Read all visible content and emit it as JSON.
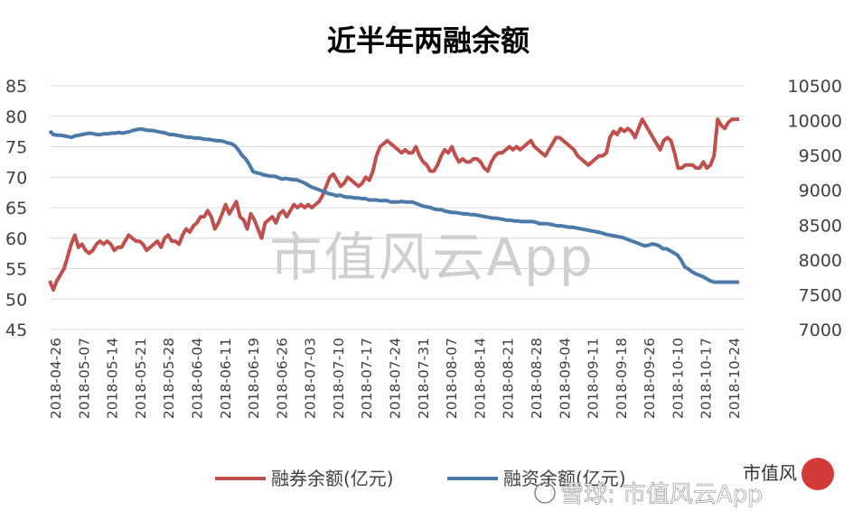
{
  "chart_data": {
    "type": "line",
    "title": "近半年两融余额",
    "grid": "horizontal",
    "legend_position": "bottom",
    "ylim_left": [
      45,
      85
    ],
    "yticks_left": [
      "45",
      "50",
      "55",
      "60",
      "65",
      "70",
      "75",
      "80",
      "85"
    ],
    "ylim_right": [
      7000,
      10500
    ],
    "yticks_right": [
      "7000",
      "7500",
      "8000",
      "8500",
      "9000",
      "9500",
      "10000",
      "10500"
    ],
    "xtick_labels": [
      "2018-04-26",
      "2018-05-07",
      "2018-05-14",
      "2018-05-21",
      "2018-05-28",
      "2018-06-04",
      "2018-06-11",
      "2018-06-19",
      "2018-06-26",
      "2018-07-03",
      "2018-07-10",
      "2018-07-17",
      "2018-07-24",
      "2018-07-31",
      "2018-08-07",
      "2018-08-14",
      "2018-08-21",
      "2018-08-28",
      "2018-09-04",
      "2018-09-11",
      "2018-09-18",
      "2018-09-26",
      "2018-10-10",
      "2018-10-17",
      "2018-10-24"
    ],
    "series": [
      {
        "name": "融券余额(亿元)",
        "axis": "left",
        "color": "#c0504d",
        "values": [
          53,
          51.5,
          53,
          54,
          55,
          57,
          59,
          60.5,
          58.5,
          59,
          58,
          57.5,
          58,
          59,
          59.5,
          59,
          59.5,
          59,
          58,
          58.5,
          58.5,
          59.5,
          60.5,
          60,
          59.5,
          59.5,
          59,
          58,
          58.5,
          59,
          59.5,
          58.5,
          60,
          60.5,
          59.5,
          59.5,
          59,
          60.5,
          61.5,
          61,
          62,
          62.5,
          63.5,
          63.5,
          64.5,
          63.5,
          61.5,
          62.5,
          64,
          65.5,
          64,
          65,
          66,
          63.5,
          63,
          61.5,
          64,
          63,
          61.5,
          60,
          62.5,
          63,
          63.5,
          62.5,
          64,
          64.5,
          63.5,
          64.5,
          65.5,
          65,
          65.5,
          65,
          65.5,
          65,
          65.5,
          66,
          67,
          68.5,
          70,
          70.5,
          69.5,
          68.5,
          69,
          70,
          69.5,
          69,
          68.5,
          69,
          70,
          69.5,
          71,
          73.5,
          75,
          75.5,
          76,
          75.5,
          75,
          74.5,
          74,
          74.5,
          74,
          74,
          75,
          73.5,
          72.5,
          72,
          71,
          71,
          72,
          73.5,
          74.5,
          74,
          75,
          73.5,
          72.5,
          73,
          72.5,
          72.5,
          73,
          73,
          72.5,
          71.5,
          71,
          72.5,
          73.5,
          74,
          74,
          74.5,
          75,
          74.5,
          75,
          74.5,
          75,
          75.5,
          76,
          75,
          74.5,
          74,
          73.5,
          74.5,
          75.5,
          76.5,
          76.5,
          76,
          75.5,
          75,
          74.5,
          73.5,
          73,
          72.5,
          72,
          72.5,
          73,
          73.5,
          73.5,
          74,
          76.5,
          77.5,
          77,
          78,
          77.5,
          78,
          77.5,
          76.5,
          78,
          79.5,
          78.5,
          77.5,
          76.5,
          75.5,
          74.5,
          76,
          76.5,
          76,
          74,
          71.5,
          71.5,
          72,
          72,
          72,
          71.5,
          71.5,
          72.5,
          71.5,
          72,
          73.5,
          79.5,
          78.5,
          78,
          79,
          79.5,
          79.5,
          79.5
        ]
      },
      {
        "name": "融资余额(亿元)",
        "axis": "right",
        "color": "#4a7aa8",
        "values": [
          9850,
          9800,
          9790,
          9790,
          9780,
          9770,
          9760,
          9780,
          9790,
          9800,
          9810,
          9820,
          9810,
          9800,
          9800,
          9810,
          9810,
          9820,
          9820,
          9830,
          9820,
          9830,
          9840,
          9860,
          9870,
          9880,
          9870,
          9860,
          9860,
          9850,
          9840,
          9830,
          9820,
          9800,
          9800,
          9790,
          9780,
          9770,
          9760,
          9760,
          9750,
          9750,
          9740,
          9730,
          9730,
          9720,
          9710,
          9710,
          9700,
          9680,
          9670,
          9640,
          9580,
          9500,
          9450,
          9370,
          9270,
          9250,
          9240,
          9220,
          9210,
          9200,
          9200,
          9180,
          9160,
          9170,
          9160,
          9150,
          9150,
          9130,
          9110,
          9080,
          9050,
          9030,
          9010,
          8990,
          8970,
          8950,
          8940,
          8920,
          8930,
          8910,
          8900,
          8900,
          8890,
          8890,
          8880,
          8880,
          8860,
          8860,
          8860,
          8850,
          8850,
          8850,
          8830,
          8830,
          8830,
          8840,
          8830,
          8830,
          8830,
          8810,
          8790,
          8770,
          8760,
          8750,
          8730,
          8720,
          8720,
          8700,
          8690,
          8680,
          8680,
          8670,
          8660,
          8660,
          8650,
          8650,
          8640,
          8630,
          8620,
          8610,
          8600,
          8600,
          8590,
          8580,
          8570,
          8570,
          8560,
          8560,
          8550,
          8550,
          8550,
          8550,
          8540,
          8520,
          8520,
          8520,
          8510,
          8500,
          8490,
          8490,
          8480,
          8470,
          8470,
          8460,
          8450,
          8440,
          8430,
          8420,
          8410,
          8400,
          8390,
          8370,
          8360,
          8350,
          8340,
          8330,
          8320,
          8300,
          8280,
          8260,
          8240,
          8220,
          8200,
          8210,
          8230,
          8220,
          8200,
          8160,
          8160,
          8130,
          8100,
          8070,
          8000,
          7900,
          7870,
          7830,
          7800,
          7780,
          7760,
          7730,
          7700,
          7680,
          7680,
          7680,
          7680,
          7680,
          7680,
          7680,
          7680
        ]
      }
    ]
  },
  "watermark": {
    "main": "市值风云App",
    "bottom": "雪球: 市值风云App",
    "logo_chars": "市值风"
  },
  "colors": {
    "grid": "#d9d9d9",
    "axis_text": "#404040",
    "seal_red": "#d23a3a"
  }
}
